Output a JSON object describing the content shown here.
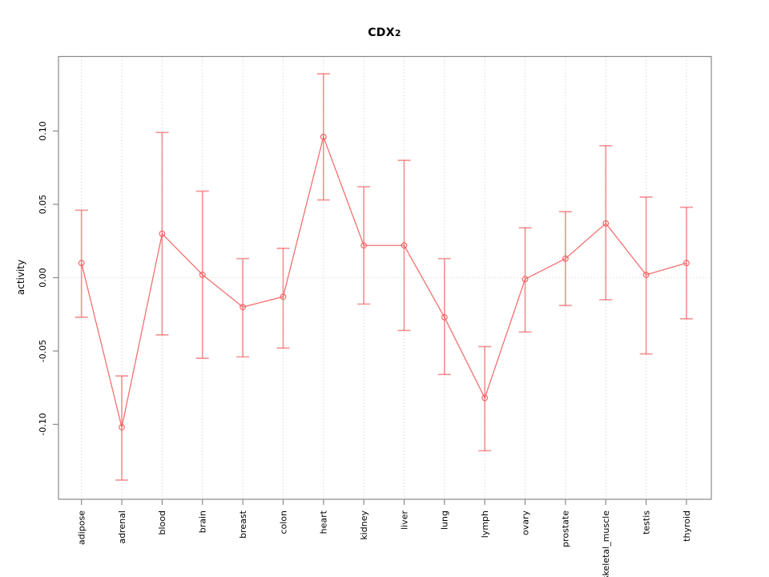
{
  "chart_data": {
    "type": "line",
    "title": "CDX2",
    "title_display": {
      "main": "CDX",
      "suffix": "2"
    },
    "xlabel": "",
    "ylabel": "activity",
    "categories": [
      "adipose",
      "adrenal",
      "blood",
      "brain",
      "breast",
      "colon",
      "heart",
      "kidney",
      "liver",
      "lung",
      "lymph",
      "ovary",
      "prostate",
      "skeletal_muscle",
      "testis",
      "thyroid"
    ],
    "series": [
      {
        "name": "CDX2 activity",
        "values": [
          0.01,
          -0.102,
          0.03,
          0.002,
          -0.02,
          -0.013,
          0.096,
          0.022,
          0.022,
          -0.027,
          -0.082,
          -0.001,
          0.013,
          0.037,
          0.002,
          0.01
        ],
        "upper": [
          0.046,
          -0.067,
          0.099,
          0.059,
          0.013,
          0.02,
          0.139,
          0.062,
          0.08,
          0.013,
          -0.047,
          0.034,
          0.045,
          0.09,
          0.055,
          0.048
        ],
        "lower": [
          -0.027,
          -0.138,
          -0.039,
          -0.055,
          -0.054,
          -0.048,
          0.053,
          -0.018,
          -0.036,
          -0.066,
          -0.118,
          -0.037,
          -0.019,
          -0.015,
          -0.052,
          -0.028
        ]
      }
    ],
    "error_bars": true,
    "marker": "open-circle",
    "ytick_labels": [
      "-0.10",
      "-0.05",
      "0.00",
      "0.05",
      "0.10"
    ],
    "ytick_values": [
      -0.1,
      -0.05,
      0.0,
      0.05,
      0.1
    ],
    "ylim": [
      -0.151,
      0.151
    ],
    "grid": {
      "vertical_dotted": true,
      "horizontal_zero_dotted": true
    },
    "legend_position": "none",
    "colors": {
      "series": "#f26060",
      "grid": "#d8d8d8",
      "zero_line": "#e4e4d6",
      "axis": "#8a8a8a",
      "text": "#000000",
      "background": "#ffffff"
    }
  }
}
